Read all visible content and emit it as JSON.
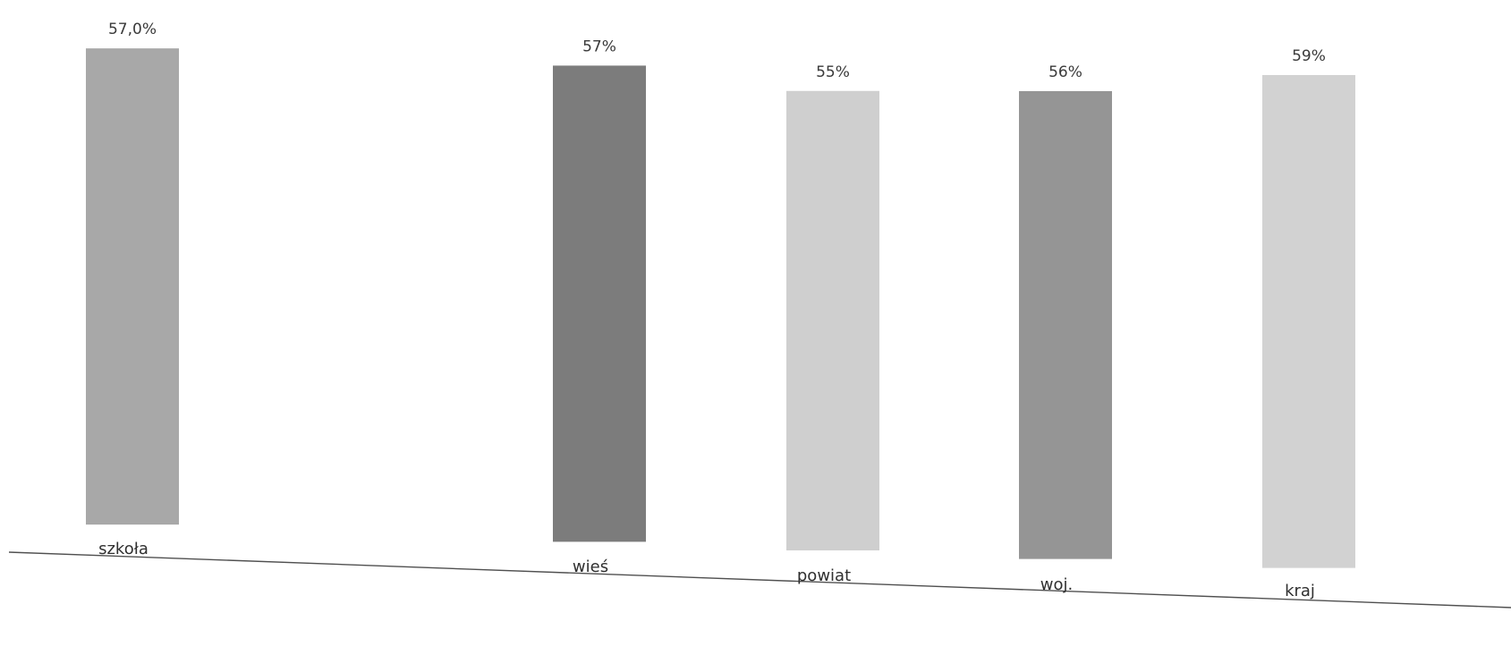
{
  "chart_data": {
    "type": "bar",
    "categories": [
      "szkoła",
      "wieś",
      "powiat",
      "woj.",
      "kraj"
    ],
    "values": [
      57.0,
      57,
      55,
      56,
      59
    ],
    "value_labels": [
      "57,0%",
      "57%",
      "55%",
      "56%",
      "59%"
    ],
    "ylim": [
      0,
      60
    ],
    "grid": false,
    "legend": "none",
    "bar_colors": [
      "#a8a8a8",
      "#7c7c7c",
      "#cfcfcf",
      "#959595",
      "#d2d2d2"
    ],
    "baseline_color": "#505050"
  }
}
